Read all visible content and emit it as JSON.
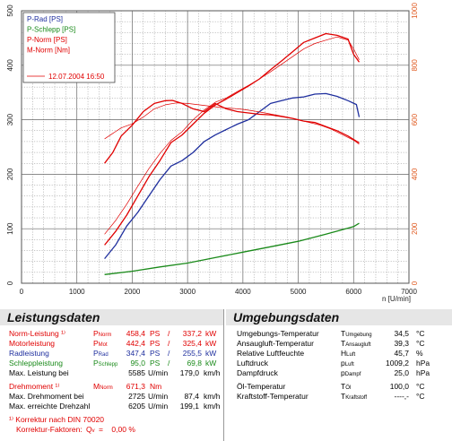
{
  "chart_data": {
    "type": "line",
    "xlabel": "n [U/min]",
    "ylabel": "",
    "xlim": [
      0,
      7000
    ],
    "ylim_left": [
      0,
      500
    ],
    "ylim_right": [
      0,
      1000
    ],
    "x_ticks": [
      "0",
      "1000",
      "2000",
      "3000",
      "4000",
      "5000",
      "6000",
      "7000"
    ],
    "y_left_ticks": [
      "0",
      "100",
      "200",
      "300",
      "400",
      "500"
    ],
    "y_right_ticks": [
      "0",
      "200",
      "400",
      "600",
      "800",
      "1000"
    ],
    "grid": true,
    "legend_position": "top-left",
    "legend": [
      {
        "label": "P-Rad [PS]",
        "color": "#1f2f9e"
      },
      {
        "label": "P-Schlepp [PS]",
        "color": "#1a8a1a"
      },
      {
        "label": "P-Norm [PS]",
        "color": "#e00000"
      },
      {
        "label": "M-Norm [Nm]",
        "color": "#e00000"
      }
    ],
    "date_label": "12.07.2004 16:50",
    "series": [
      {
        "name": "P-Rad [PS]",
        "axis": "left",
        "color": "#1f2f9e",
        "width": 1.3,
        "x": [
          1500,
          1700,
          1900,
          2100,
          2300,
          2500,
          2700,
          2900,
          3100,
          3300,
          3500,
          3700,
          3900,
          4100,
          4300,
          4500,
          4700,
          4900,
          5100,
          5300,
          5500,
          5700,
          5900,
          6050,
          6100
        ],
        "y": [
          45,
          70,
          105,
          130,
          160,
          190,
          215,
          225,
          240,
          260,
          272,
          282,
          292,
          300,
          315,
          330,
          335,
          340,
          342,
          347,
          348,
          343,
          335,
          328,
          305
        ]
      },
      {
        "name": "P-Schlepp [PS]",
        "axis": "left",
        "color": "#1a8a1a",
        "width": 1.3,
        "x": [
          1500,
          2000,
          2500,
          3000,
          3500,
          4000,
          4500,
          5000,
          5500,
          6000,
          6100
        ],
        "y": [
          16,
          22,
          30,
          37,
          47,
          57,
          67,
          77,
          90,
          104,
          110
        ]
      },
      {
        "name": "P-Norm [PS]",
        "axis": "left",
        "color": "#e00000",
        "width": 1.3,
        "x": [
          1500,
          1700,
          1900,
          2100,
          2300,
          2500,
          2700,
          2900,
          3100,
          3300,
          3500,
          3700,
          3900,
          4100,
          4300,
          4500,
          4700,
          4900,
          5100,
          5300,
          5500,
          5700,
          5900,
          6000,
          6100
        ],
        "y": [
          70,
          95,
          125,
          160,
          195,
          225,
          258,
          272,
          292,
          312,
          327,
          338,
          350,
          362,
          375,
          392,
          408,
          425,
          442,
          450,
          458,
          455,
          448,
          420,
          406
        ]
      },
      {
        "name": "P-Norm [PS]",
        "axis": "left",
        "color": "#e00000",
        "width": 0.7,
        "x": [
          1500,
          1700,
          1900,
          2100,
          2300,
          2500,
          2700,
          2900,
          3100,
          3300,
          3500,
          3700,
          3900,
          4100,
          4300,
          4500,
          4700,
          4900,
          5100,
          5300,
          5500,
          5700,
          5900,
          6000,
          6100
        ],
        "y": [
          90,
          115,
          145,
          178,
          210,
          238,
          262,
          278,
          300,
          318,
          332,
          340,
          352,
          363,
          375,
          388,
          402,
          416,
          430,
          440,
          446,
          452,
          446,
          430,
          410
        ]
      },
      {
        "name": "M-Norm [Nm]",
        "axis": "right",
        "color": "#e00000",
        "width": 1.3,
        "x": [
          1500,
          1650,
          1800,
          2000,
          2200,
          2400,
          2600,
          2725,
          2900,
          3100,
          3300,
          3500,
          3700,
          3900,
          4100,
          4300,
          4500,
          4700,
          4900,
          5100,
          5300,
          5500,
          5700,
          5900,
          6100
        ],
        "y": [
          440,
          480,
          540,
          580,
          630,
          660,
          670,
          671,
          660,
          640,
          630,
          660,
          640,
          630,
          625,
          620,
          618,
          612,
          605,
          595,
          590,
          575,
          560,
          540,
          515
        ]
      },
      {
        "name": "M-Norm [Nm]",
        "axis": "right",
        "color": "#e00000",
        "width": 0.7,
        "x": [
          1500,
          1650,
          1800,
          2000,
          2200,
          2400,
          2600,
          2800,
          3000,
          3200,
          3400,
          3600,
          3800,
          4000,
          4200,
          4400,
          4600,
          4800,
          5000,
          5200,
          5400,
          5600,
          5800,
          6000,
          6100
        ],
        "y": [
          530,
          550,
          570,
          585,
          610,
          640,
          655,
          662,
          660,
          655,
          650,
          645,
          642,
          638,
          632,
          625,
          617,
          610,
          600,
          590,
          580,
          565,
          545,
          525,
          510
        ]
      }
    ]
  },
  "left_panel": {
    "title": "Leistungsdaten",
    "rows": [
      {
        "label": "Norm-Leistung ¹⁾",
        "sym": "P",
        "sub": "Norm",
        "v1": "458,4",
        "u1": "PS",
        "v2": "337,2",
        "u2": "kW",
        "color": "red"
      },
      {
        "label": "Motorleistung",
        "sym": "P",
        "sub": "Mot",
        "v1": "442,4",
        "u1": "PS",
        "v2": "325,4",
        "u2": "kW",
        "color": "red"
      },
      {
        "label": "Radleistung",
        "sym": "P",
        "sub": "Rad",
        "v1": "347,4",
        "u1": "PS",
        "v2": "255,5",
        "u2": "kW",
        "color": "blue"
      },
      {
        "label": "Schleppleistung",
        "sym": "P",
        "sub": "Schlepp",
        "v1": "95,0",
        "u1": "PS",
        "v2": "69,8",
        "u2": "kW",
        "color": "green"
      }
    ],
    "max_power": {
      "label": "Max. Leistung bei",
      "rpm": "5585",
      "rpm_unit": "U/min",
      "speed": "179,0",
      "speed_unit": "km/h"
    },
    "torque": {
      "label": "Drehmoment ¹⁾",
      "sym": "M",
      "sub": "Norm",
      "value": "671,3",
      "unit": "Nm"
    },
    "max_torque": {
      "label": "Max. Drehmoment bei",
      "rpm": "2725",
      "rpm_unit": "U/min",
      "speed": "87,4",
      "speed_unit": "km/h"
    },
    "max_rpm": {
      "label": "Max. erreichte Drehzahl",
      "rpm": "6205",
      "rpm_unit": "U/min",
      "speed": "199,1",
      "speed_unit": "km/h"
    },
    "note1": "¹⁾ Korrektur nach DIN 70020",
    "note2_label": "Korrektur-Faktoren:",
    "note2_sym": "Q",
    "note2_sub": "v",
    "note2_val": "=    0,00 %"
  },
  "right_panel": {
    "title": "Umgebungsdaten",
    "rows": [
      {
        "label": "Umgebungs-Temperatur",
        "sym": "T",
        "sub": "Umgebung",
        "value": "34,5",
        "unit": "°C"
      },
      {
        "label": "Ansaugluft-Temperatur",
        "sym": "T",
        "sub": "Ansaugluft",
        "value": "39,3",
        "unit": "°C"
      },
      {
        "label": "Relative Luftfeuchte",
        "sym": "H",
        "sub": "Luft",
        "value": "45,7",
        "unit": "%"
      },
      {
        "label": "Luftdruck",
        "sym": "p",
        "sub": "Luft",
        "value": "1009,2",
        "unit": "hPa"
      },
      {
        "label": "Dampfdruck",
        "sym": "p",
        "sub": "Dampf",
        "value": "25,0",
        "unit": "hPa"
      },
      {
        "label": "Öl-Temperatur",
        "sym": "T",
        "sub": "Öl",
        "value": "100,0",
        "unit": "°C"
      },
      {
        "label": "Kraftstoff-Temperatur",
        "sym": "T",
        "sub": "Kraftstoff",
        "value": "----,-",
        "unit": "°C"
      }
    ]
  }
}
